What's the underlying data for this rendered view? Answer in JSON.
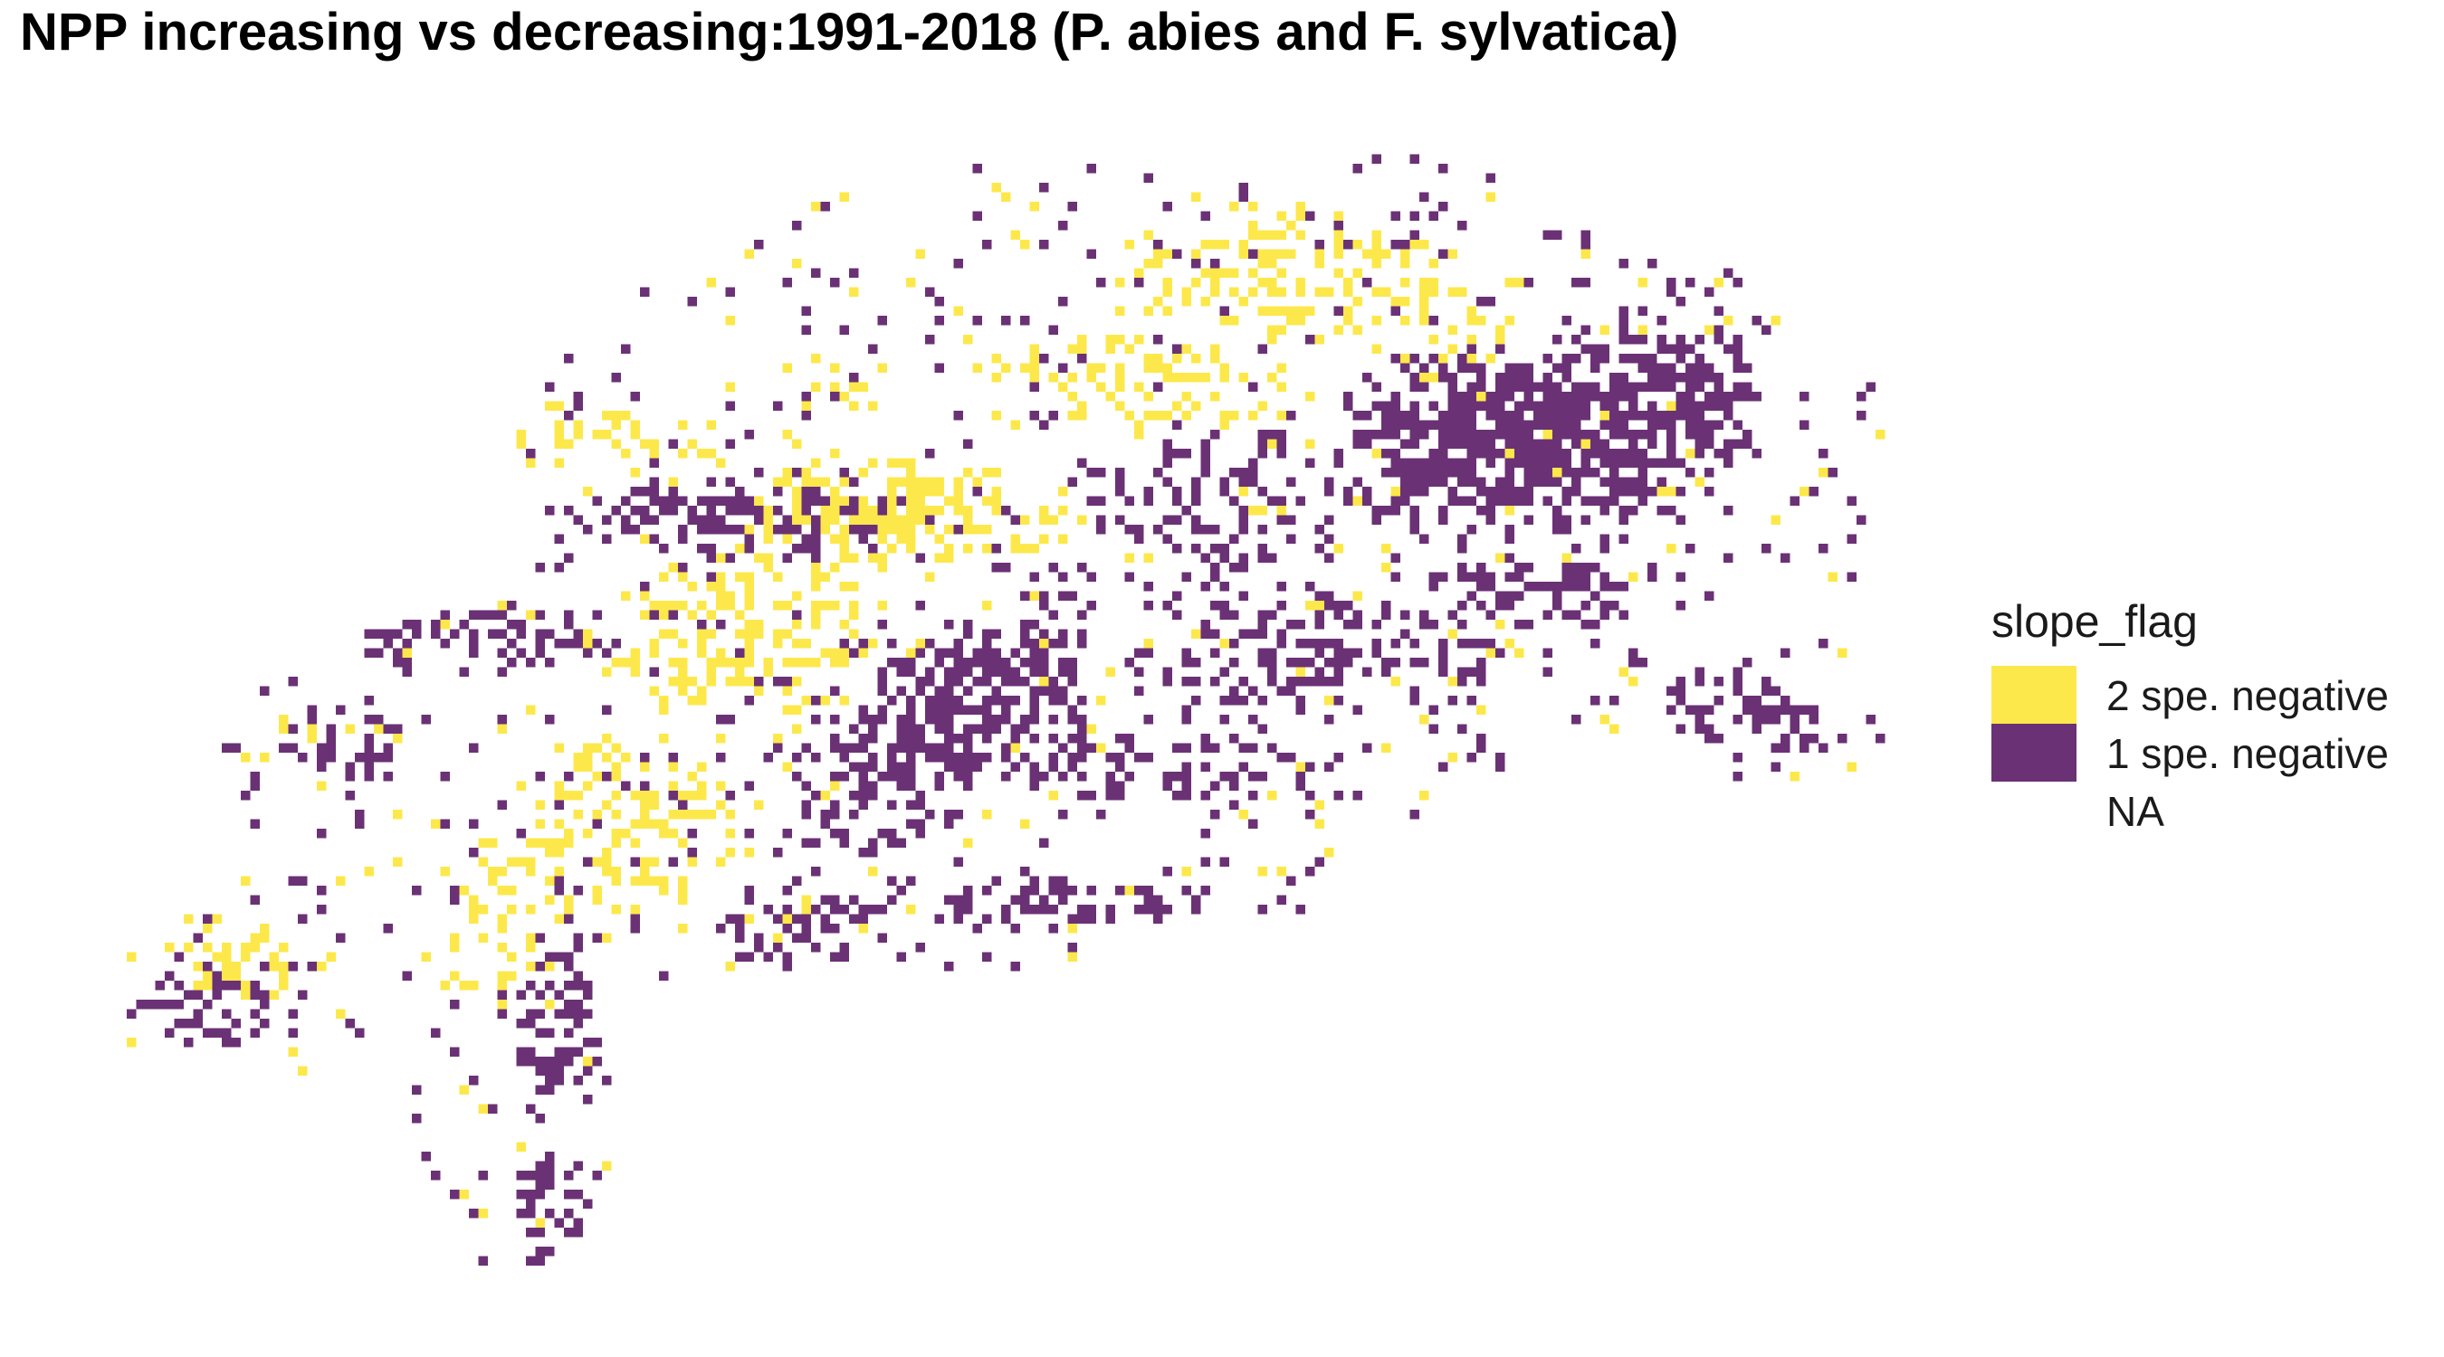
{
  "title": "NPP increasing vs decreasing:1991-2018 (P. abies and F. sylvatica)",
  "legend": {
    "title": "slope_flag",
    "items": [
      {
        "label": "2 spe. negative",
        "color": "#FDE84C"
      },
      {
        "label": "1 spe. negative",
        "color": "#6B3175"
      },
      {
        "label": "NA",
        "color": "transparent"
      }
    ]
  },
  "colors": {
    "two_negative": "#FDE84C",
    "one_negative": "#6B3175",
    "background": "#FFFFFF"
  }
}
